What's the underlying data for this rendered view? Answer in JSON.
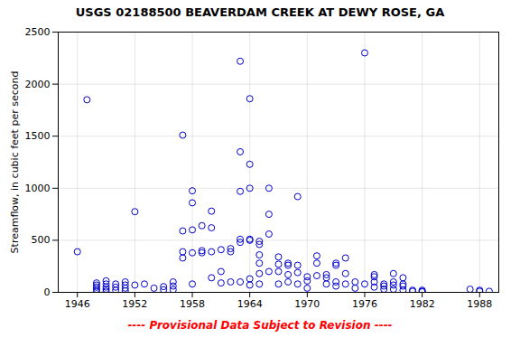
{
  "chart_data": {
    "type": "scatter",
    "title": "USGS 02188500 BEAVERDAM CREEK AT DEWY ROSE, GA",
    "ylabel": "Streamflow, in cubic feet per second",
    "annotations": [
      {
        "text": "---- Provisional Data Subject to Revision ----",
        "color": "red"
      }
    ],
    "x": [
      1946,
      1947,
      1948,
      1948,
      1948,
      1948,
      1948,
      1949,
      1949,
      1949,
      1949,
      1949,
      1950,
      1950,
      1950,
      1951,
      1951,
      1951,
      1951,
      1952,
      1952,
      1953,
      1954,
      1955,
      1955,
      1956,
      1956,
      1956,
      1957,
      1957,
      1957,
      1957,
      1958,
      1958,
      1958,
      1958,
      1958,
      1959,
      1959,
      1959,
      1960,
      1960,
      1960,
      1960,
      1961,
      1961,
      1961,
      1962,
      1962,
      1962,
      1963,
      1963,
      1963,
      1963,
      1963,
      1963,
      1964,
      1964,
      1964,
      1964,
      1964,
      1964,
      1964,
      1965,
      1965,
      1965,
      1965,
      1965,
      1965,
      1966,
      1966,
      1966,
      1966,
      1967,
      1967,
      1967,
      1967,
      1968,
      1968,
      1968,
      1968,
      1969,
      1969,
      1969,
      1969,
      1970,
      1970,
      1970,
      1971,
      1971,
      1971,
      1972,
      1972,
      1972,
      1973,
      1973,
      1973,
      1973,
      1974,
      1974,
      1974,
      1975,
      1975,
      1976,
      1976,
      1977,
      1977,
      1977,
      1977,
      1978,
      1978,
      1978,
      1979,
      1979,
      1979,
      1979,
      1980,
      1980,
      1980,
      1980,
      1981,
      1981,
      1982,
      1982,
      1982,
      1987,
      1988,
      1988,
      1989
    ],
    "values": [
      390,
      1850,
      90,
      70,
      50,
      30,
      10,
      110,
      80,
      50,
      30,
      10,
      80,
      50,
      20,
      100,
      70,
      40,
      15,
      775,
      70,
      80,
      40,
      55,
      25,
      100,
      60,
      25,
      1510,
      590,
      390,
      330,
      975,
      860,
      600,
      380,
      80,
      640,
      400,
      380,
      780,
      620,
      390,
      140,
      410,
      200,
      90,
      420,
      390,
      100,
      2220,
      1350,
      970,
      510,
      480,
      100,
      1860,
      1230,
      1000,
      510,
      500,
      130,
      70,
      490,
      460,
      360,
      280,
      180,
      80,
      1000,
      750,
      560,
      200,
      340,
      270,
      200,
      80,
      280,
      260,
      170,
      100,
      920,
      260,
      190,
      80,
      150,
      110,
      40,
      350,
      280,
      160,
      170,
      140,
      80,
      280,
      260,
      100,
      60,
      330,
      180,
      80,
      100,
      40,
      2300,
      80,
      170,
      150,
      100,
      50,
      80,
      60,
      30,
      180,
      100,
      70,
      30,
      140,
      80,
      60,
      20,
      20,
      10,
      20,
      10,
      5,
      30,
      20,
      10,
      10
    ],
    "color": "#0000cc",
    "marker": "open-circle",
    "xlim": [
      1944,
      1990
    ],
    "ylim": [
      0,
      2500
    ],
    "xticks": [
      1946,
      1952,
      1958,
      1964,
      1970,
      1976,
      1982,
      1988
    ],
    "yticks": [
      0,
      500,
      1000,
      1500,
      2000,
      2500
    ],
    "grid": true
  }
}
